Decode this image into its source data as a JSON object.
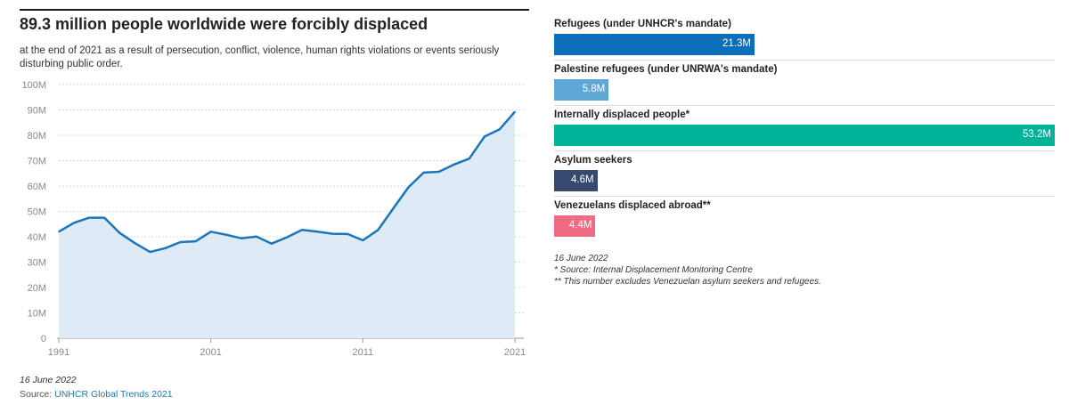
{
  "left_panel": {
    "title": "89.3 million people worldwide were forcibly displaced",
    "subtitle": "at the end of 2021 as a result of persecution, conflict, violence, human rights violations or events seriously disturbing public order.",
    "date": "16 June 2022",
    "source_prefix": "Source: ",
    "source_link": "UNHCR Global Trends 2021"
  },
  "chart_data": [
    {
      "type": "area",
      "x": [
        1991,
        1992,
        1993,
        1994,
        1995,
        1996,
        1997,
        1998,
        1999,
        2000,
        2001,
        2002,
        2003,
        2004,
        2005,
        2006,
        2007,
        2008,
        2009,
        2010,
        2011,
        2012,
        2013,
        2014,
        2015,
        2016,
        2017,
        2018,
        2019,
        2020,
        2021
      ],
      "series": [
        {
          "values": [
            42,
            45.5,
            47.5,
            47.5,
            41.5,
            37.5,
            34,
            35.5,
            37.9,
            38.2,
            42,
            40.8,
            39.4,
            40.1,
            37.3,
            39.8,
            42.7,
            42,
            41.2,
            41.1,
            38.6,
            42.7,
            51.2,
            59.5,
            65.3,
            65.6,
            68.5,
            70.8,
            79.5,
            82.4,
            89.3
          ]
        }
      ],
      "xticks": [
        "1991",
        "2001",
        "2011",
        "2021"
      ],
      "yticks": [
        "0",
        "10M",
        "20M",
        "30M",
        "40M",
        "50M",
        "60M",
        "70M",
        "80M",
        "90M",
        "100M"
      ],
      "xlim": [
        1991,
        2021
      ],
      "ylim": [
        0,
        100
      ],
      "grid": true,
      "colors": {
        "line": "#1a75bb",
        "fill": "#deeaf5"
      }
    },
    {
      "type": "bar",
      "orientation": "horizontal",
      "categories": [
        "Refugees (under UNHCR's mandate)",
        "Palestine refugees (under UNRWA's mandate)",
        "Internally displaced people*",
        "Asylum seekers",
        "Venezuelans displaced abroad**"
      ],
      "values": [
        21.3,
        5.8,
        53.2,
        4.6,
        4.4
      ],
      "value_labels": [
        "21.3M",
        "5.8M",
        "53.2M",
        "4.6M",
        "4.4M"
      ],
      "colors": [
        "#0d6fb8",
        "#5ea8d8",
        "#00b398",
        "#364a6f",
        "#ef6c82"
      ],
      "xlim": [
        0,
        53.2
      ]
    }
  ],
  "right_panel": {
    "date": "16 June 2022",
    "note1": "* Source: Internal Displacement Monitoring Centre",
    "note2": "** This number excludes Venezuelan asylum seekers and refugees."
  }
}
